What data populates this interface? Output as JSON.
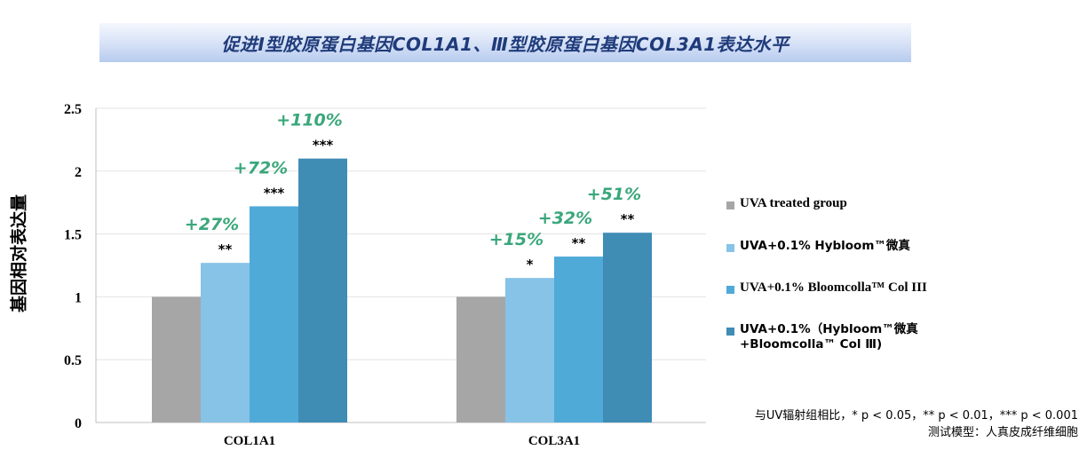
{
  "title": "促进Ⅰ型胶原蛋白基因COL1A1、Ⅲ型胶原蛋白基因COL3A1表达水平",
  "chart_data": {
    "type": "bar",
    "ylabel": "基因相对表达量",
    "xlabel": "",
    "ylim": [
      0,
      2.5
    ],
    "yticks": [
      "0",
      "0.5",
      "1",
      "1.5",
      "2",
      "2.5"
    ],
    "grid": true,
    "legend_position": "right",
    "categories": [
      "COL1A1",
      "COL3A1"
    ],
    "series": [
      {
        "name": "UVA treated group",
        "color": "#a6a6a6",
        "values": [
          1.0,
          1.0
        ],
        "pct": [
          "",
          ""
        ],
        "sig": [
          "",
          ""
        ]
      },
      {
        "name": "UVA+0.1% Hybloom™微真",
        "color": "#86c3e7",
        "values": [
          1.27,
          1.15
        ],
        "pct": [
          "+27%",
          "+15%"
        ],
        "sig": [
          "**",
          "*"
        ]
      },
      {
        "name": "UVA+0.1% Bloomcolla™ Col III",
        "color": "#4faad8",
        "values": [
          1.72,
          1.32
        ],
        "pct": [
          "+72%",
          "+32%"
        ],
        "sig": [
          "***",
          "**"
        ]
      },
      {
        "name": "UVA+0.1%（Hybloom™微真\n+Bloomcolla™ Col Ⅲ)",
        "color": "#3f8cb5",
        "values": [
          2.1,
          1.51
        ],
        "pct": [
          "+110%",
          "+51%"
        ],
        "sig": [
          "***",
          "**"
        ]
      }
    ],
    "annotation_color": "#3aa77a"
  },
  "footnote": {
    "line1": "与UV辐射组相比，* p < 0.05，** p < 0.01，*** p < 0.001",
    "line2": "测试模型：人真皮成纤维细胞"
  }
}
